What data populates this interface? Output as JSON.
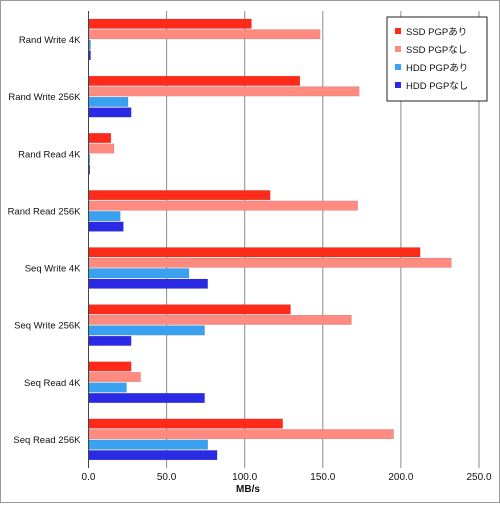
{
  "chart_data": {
    "type": "bar",
    "orientation": "horizontal",
    "categories": [
      "Rand Write 4K",
      "Rand Write 256K",
      "Rand Read 4K",
      "Rand Read 256K",
      "Seq Write 4K",
      "Seq Write 256K",
      "Seq Read 4K",
      "Seq Read 256K"
    ],
    "series": [
      {
        "name": "SSD PGPあり",
        "color": "#ff2a1a",
        "values": [
          104,
          135,
          14,
          116,
          212,
          129,
          27,
          124
        ]
      },
      {
        "name": "SSD PGPなし",
        "color": "#ff8a80",
        "values": [
          148,
          173,
          16,
          172,
          232,
          168,
          33,
          195
        ]
      },
      {
        "name": "HDD PGPあり",
        "color": "#3aa1f2",
        "values": [
          1,
          25,
          0.5,
          20,
          64,
          74,
          24,
          76
        ]
      },
      {
        "name": "HDD PGPなし",
        "color": "#2a2ae6",
        "values": [
          1,
          27,
          0.5,
          22,
          76,
          27,
          74,
          82
        ]
      }
    ],
    "xlabel": "MB/s",
    "ylabel": "",
    "xlim": [
      0,
      250
    ],
    "x_ticks": [
      "0.0",
      "50.0",
      "100.0",
      "150.0",
      "200.0",
      "250.0"
    ],
    "grid": "vertical",
    "legend_position": "top-right"
  }
}
